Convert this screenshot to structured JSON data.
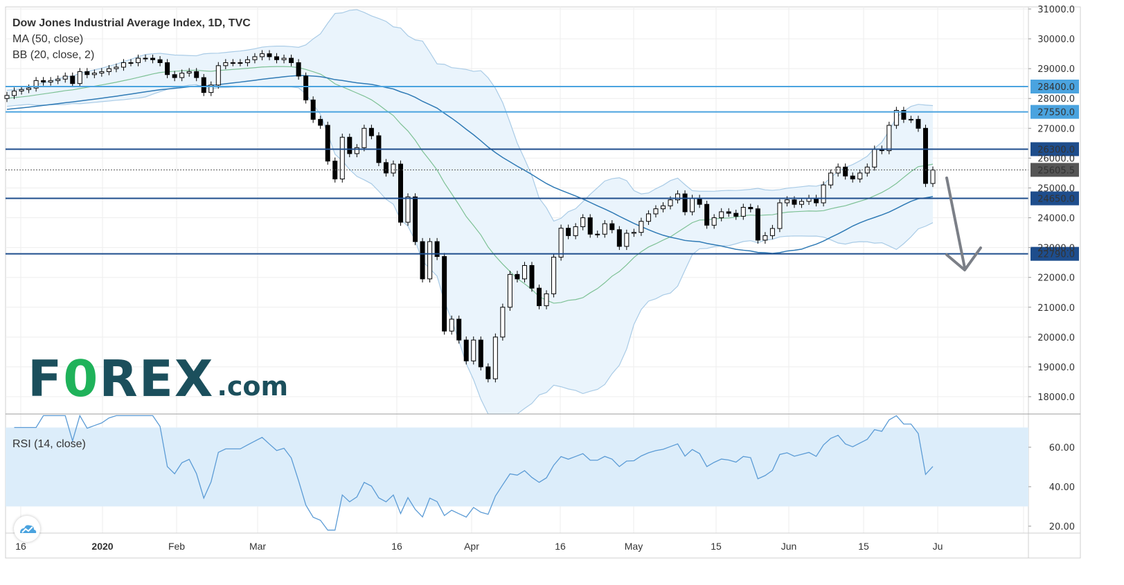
{
  "legend": {
    "title": "Dow Jones Industrial Average Index, 1D, TVC",
    "ma": "MA (50, close)",
    "bb": "BB (20, close, 2)"
  },
  "rsi_label": "RSI (14, close)",
  "logo_text": "FOREX.com",
  "colors": {
    "candle": "#000000",
    "ma50": "#2f7ab5",
    "bb_basis": "#7dc195",
    "bb_band": "#a9cbe6",
    "bb_fill": "#eaf4fc",
    "level_dark": "#1e4d8c",
    "level_light": "#4aa3df",
    "rsi_line": "#5b9bd5",
    "rsi_fill": "#dcedfa",
    "arrow": "#7b7f87",
    "logo": "#1b4f5c",
    "logo_accent": "#1fb25a"
  },
  "chart_data": [
    {
      "type": "candlestick",
      "y_axis_ticks": [
        "31000.0",
        "30000.0",
        "29000.0",
        "28000.0",
        "27000.0",
        "26000.0",
        "25000.0",
        "24000.0",
        "23000.0",
        "22000.0",
        "21000.0",
        "20000.0",
        "19000.0",
        "18000.0"
      ],
      "x_axis_ticks": [
        "16",
        "2020",
        "Feb",
        "Mar",
        "16",
        "Apr",
        "16",
        "May",
        "15",
        "Jun",
        "15",
        "Ju"
      ],
      "horizontal_levels": [
        {
          "value": 28400,
          "label": "28400.0"
        },
        {
          "value": 27550,
          "label": "27550.0"
        },
        {
          "value": 26300,
          "label": "26300.0"
        },
        {
          "value": 24650,
          "label": "24650.0"
        },
        {
          "value": 22790,
          "label": "22790.0"
        }
      ],
      "last_price": {
        "value": 25605.5,
        "label": "25605.5"
      },
      "closes": [
        28100,
        28250,
        28300,
        28350,
        28600,
        28550,
        28600,
        28650,
        28750,
        28500,
        28900,
        28800,
        28850,
        28900,
        29000,
        29050,
        29200,
        29200,
        29350,
        29350,
        29300,
        29200,
        28800,
        28700,
        28850,
        28900,
        28700,
        28200,
        28450,
        29100,
        29200,
        29200,
        29200,
        29300,
        29400,
        29500,
        29400,
        29300,
        29350,
        29200,
        28750,
        27950,
        27300,
        27100,
        25900,
        25300,
        26700,
        26150,
        26350,
        27000,
        26750,
        25850,
        25500,
        25800,
        23850,
        24700,
        23200,
        21950,
        23200,
        22700,
        20200,
        20600,
        19900,
        19200,
        19900,
        19000,
        18600,
        20000,
        21000,
        22100,
        21950,
        22400,
        21640,
        21050,
        21450,
        22680,
        23650,
        23400,
        23700,
        24000,
        23450,
        23450,
        23800,
        23600,
        23040,
        23480,
        23510,
        23880,
        24130,
        24300,
        24400,
        24600,
        24800,
        24200,
        24650,
        24450,
        23750,
        24000,
        24200,
        24150,
        24050,
        24350,
        24300,
        23250,
        23400,
        23640,
        24500,
        24600,
        24450,
        24550,
        24650,
        24500,
        25100,
        25500,
        25700,
        25400,
        25300,
        25500,
        25700,
        26300,
        26250,
        27100,
        27600,
        27300,
        27300,
        27000,
        25150,
        25600
      ],
      "rsi": {
        "ticks": [
          "60.00",
          "40.00",
          "20.00"
        ],
        "upper": 70,
        "lower": 30
      }
    }
  ]
}
